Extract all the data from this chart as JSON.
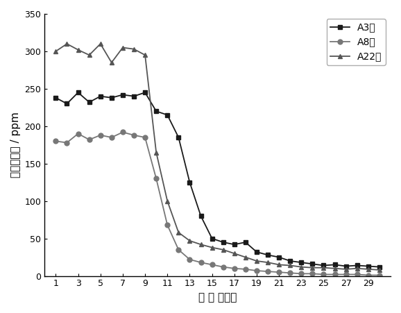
{
  "title": "",
  "xlabel": "时 间 （天）",
  "ylabel": "硫化氢含量 / ppm",
  "ylim": [
    0,
    350
  ],
  "yticks": [
    0,
    50,
    100,
    150,
    200,
    250,
    300,
    350
  ],
  "xticks": [
    1,
    3,
    5,
    7,
    9,
    11,
    13,
    15,
    17,
    19,
    21,
    23,
    25,
    27,
    29
  ],
  "A3": {
    "x": [
      1,
      2,
      3,
      4,
      5,
      6,
      7,
      8,
      9,
      10,
      11,
      12,
      13,
      14,
      15,
      16,
      17,
      18,
      19,
      20,
      21,
      22,
      23,
      24,
      25,
      26,
      27,
      28,
      29,
      30
    ],
    "y": [
      238,
      230,
      245,
      232,
      240,
      238,
      242,
      240,
      245,
      220,
      215,
      185,
      125,
      80,
      50,
      45,
      42,
      45,
      32,
      28,
      25,
      20,
      18,
      16,
      14,
      15,
      13,
      14,
      13,
      12
    ],
    "color": "#1a1a1a",
    "marker": "s",
    "label": "A3井"
  },
  "A8": {
    "x": [
      1,
      2,
      3,
      4,
      5,
      6,
      7,
      8,
      9,
      10,
      11,
      12,
      13,
      14,
      15,
      16,
      17,
      18,
      19,
      20,
      21,
      22,
      23,
      24,
      25,
      26,
      27,
      28,
      29,
      30
    ],
    "y": [
      180,
      178,
      190,
      182,
      188,
      185,
      192,
      188,
      185,
      130,
      68,
      35,
      22,
      18,
      15,
      12,
      10,
      9,
      7,
      6,
      5,
      4,
      3,
      3,
      2,
      2,
      2,
      2,
      1,
      1
    ],
    "color": "#777777",
    "marker": "o",
    "label": "A8井"
  },
  "A22": {
    "x": [
      1,
      2,
      3,
      4,
      5,
      6,
      7,
      8,
      9,
      10,
      11,
      12,
      13,
      14,
      15,
      16,
      17,
      18,
      19,
      20,
      21,
      22,
      23,
      24,
      25,
      26,
      27,
      28,
      29,
      30
    ],
    "y": [
      300,
      310,
      302,
      295,
      310,
      285,
      305,
      303,
      295,
      165,
      100,
      58,
      47,
      42,
      38,
      35,
      30,
      25,
      20,
      18,
      15,
      14,
      12,
      11,
      11,
      10,
      9,
      10,
      9,
      8
    ],
    "color": "#555555",
    "marker": "^",
    "label": "A22井"
  },
  "background_color": "#ffffff",
  "legend_loc": "upper right",
  "figsize": [
    5.78,
    4.51
  ],
  "dpi": 100
}
